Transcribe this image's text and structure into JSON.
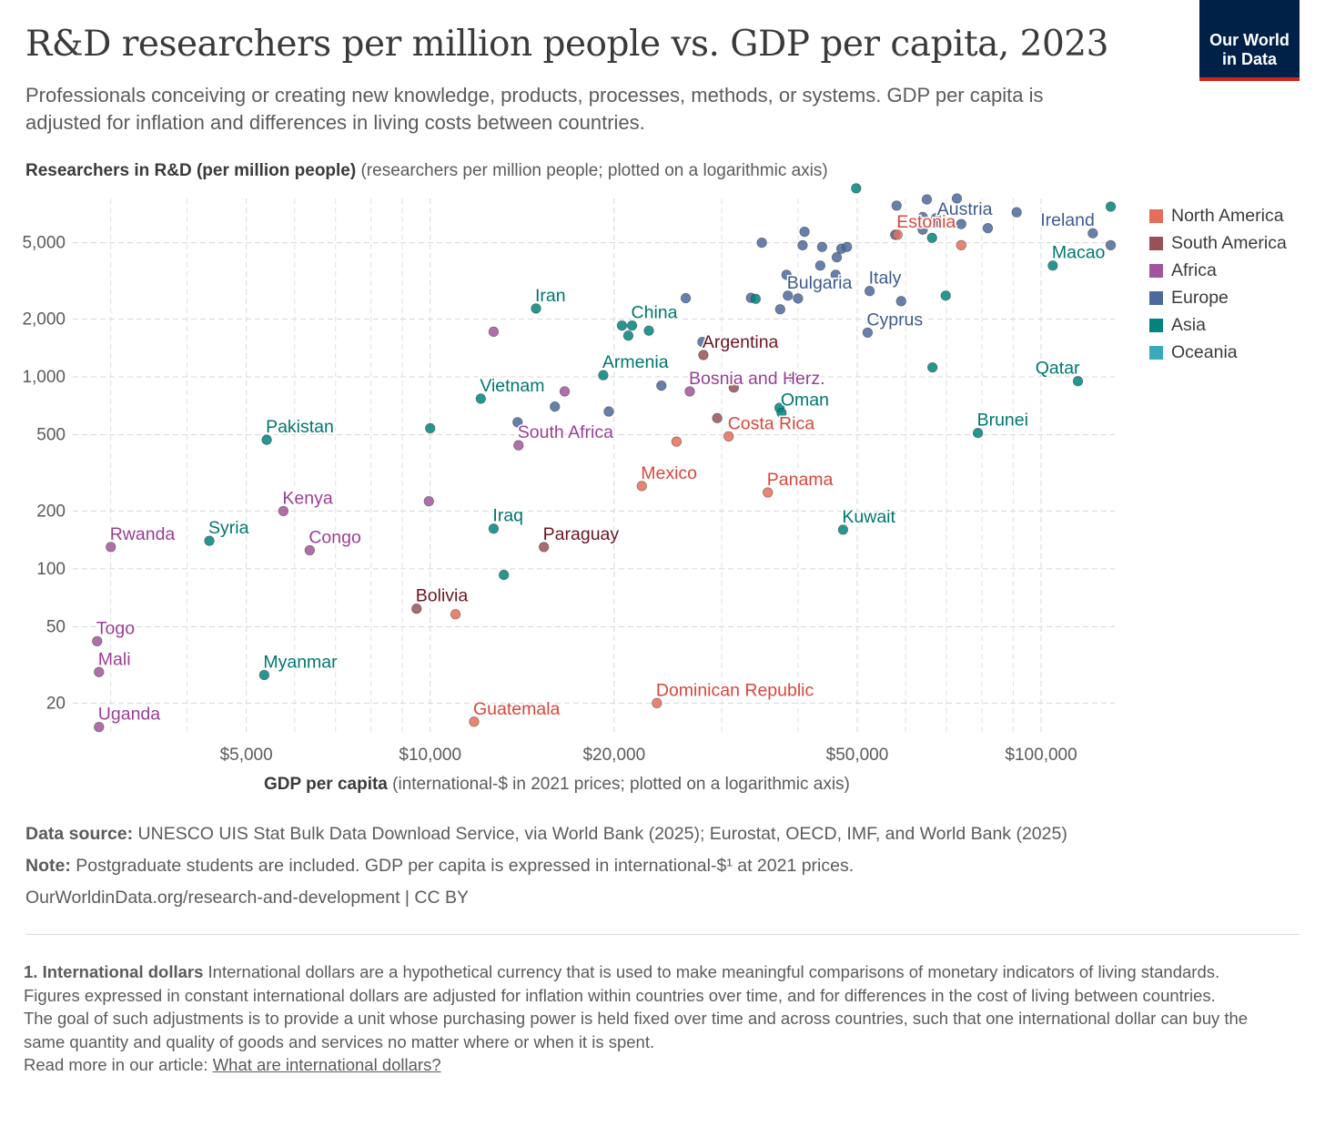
{
  "header": {
    "title": "R&D researchers per million people vs. GDP per capita, 2023",
    "subtitle": "Professionals conceiving or creating new knowledge, products, processes, methods, or systems. GDP per capita is adjusted for inflation and differences in living costs between countries.",
    "logo_line1": "Our World",
    "logo_line2": "in Data"
  },
  "colors": {
    "North America": "#e56e5a",
    "South America": "#9a5057",
    "Africa": "#a2559c",
    "Europe": "#4c6a9c",
    "Asia": "#00847e",
    "Oceania": "#38aaba",
    "label_North America": "#d7473b",
    "label_South America": "#6d1520",
    "label_Africa": "#9a3e94",
    "label_Europe": "#3d5a8e",
    "label_Asia": "#00766f",
    "logo_bg": "#002147",
    "logo_accent": "#ce261e"
  },
  "chart_data": {
    "type": "scatter",
    "title": "R&D researchers per million people vs. GDP per capita, 2023",
    "ylabel_bold": "Researchers in R&D (per million people)",
    "ylabel_rest": "(researchers per million people; plotted on a logarithmic axis)",
    "xlabel_bold": "GDP per capita",
    "xlabel_rest": "(international-$ in 2021 prices; plotted on a logarithmic axis)",
    "x_scale": "log",
    "y_scale": "log",
    "xlim": [
      2600,
      132000
    ],
    "ylim": [
      14,
      8500
    ],
    "x_ticks": [
      {
        "v": 5000,
        "label": "$5,000"
      },
      {
        "v": 10000,
        "label": "$10,000"
      },
      {
        "v": 20000,
        "label": "$20,000"
      },
      {
        "v": 50000,
        "label": "$50,000"
      },
      {
        "v": 100000,
        "label": "$100,000"
      }
    ],
    "x_minor_grid": [
      3000,
      4000,
      6000,
      7000,
      8000,
      9000,
      30000,
      40000,
      60000,
      70000,
      80000,
      90000
    ],
    "y_ticks": [
      {
        "v": 20,
        "label": "20"
      },
      {
        "v": 50,
        "label": "50"
      },
      {
        "v": 100,
        "label": "100"
      },
      {
        "v": 200,
        "label": "200"
      },
      {
        "v": 500,
        "label": "500"
      },
      {
        "v": 1000,
        "label": "1,000"
      },
      {
        "v": 2000,
        "label": "2,000"
      },
      {
        "v": 5000,
        "label": "5,000"
      }
    ],
    "grid": true,
    "legend_position": "right",
    "legend": [
      "North America",
      "South America",
      "Africa",
      "Europe",
      "Asia",
      "Oceania"
    ],
    "points": [
      {
        "x": 3000,
        "y": 130,
        "region": "Africa",
        "label": "Rwanda"
      },
      {
        "x": 2850,
        "y": 42,
        "region": "Africa",
        "label": "Togo"
      },
      {
        "x": 2870,
        "y": 29,
        "region": "Africa",
        "label": "Mali"
      },
      {
        "x": 2870,
        "y": 15,
        "region": "Africa",
        "label": "Uganda"
      },
      {
        "x": 4350,
        "y": 140,
        "region": "Asia",
        "label": "Syria"
      },
      {
        "x": 5400,
        "y": 470,
        "region": "Asia",
        "label": "Pakistan"
      },
      {
        "x": 5350,
        "y": 28,
        "region": "Asia",
        "label": "Myanmar"
      },
      {
        "x": 5750,
        "y": 200,
        "region": "Africa",
        "label": "Kenya"
      },
      {
        "x": 6350,
        "y": 125,
        "region": "Africa",
        "label": "Congo"
      },
      {
        "x": 9500,
        "y": 62,
        "region": "South America",
        "label": "Bolivia"
      },
      {
        "x": 9950,
        "y": 225,
        "region": "Africa"
      },
      {
        "x": 10000,
        "y": 540,
        "region": "Asia"
      },
      {
        "x": 11000,
        "y": 58,
        "region": "North America"
      },
      {
        "x": 11800,
        "y": 16,
        "region": "North America",
        "label": "Guatemala"
      },
      {
        "x": 12100,
        "y": 770,
        "region": "Asia",
        "label": "Vietnam"
      },
      {
        "x": 12700,
        "y": 1720,
        "region": "Africa"
      },
      {
        "x": 12700,
        "y": 162,
        "region": "Asia",
        "label": "Iraq"
      },
      {
        "x": 13200,
        "y": 93,
        "region": "Asia"
      },
      {
        "x": 13900,
        "y": 580,
        "region": "Europe"
      },
      {
        "x": 13950,
        "y": 440,
        "region": "Africa",
        "label": "South Africa"
      },
      {
        "x": 14900,
        "y": 2270,
        "region": "Asia",
        "label": "Iran"
      },
      {
        "x": 15350,
        "y": 130,
        "region": "South America",
        "label": "Paraguay"
      },
      {
        "x": 16000,
        "y": 700,
        "region": "Europe"
      },
      {
        "x": 16600,
        "y": 840,
        "region": "Africa"
      },
      {
        "x": 19200,
        "y": 1020,
        "region": "Asia",
        "label": "Armenia"
      },
      {
        "x": 19600,
        "y": 660,
        "region": "Europe"
      },
      {
        "x": 20600,
        "y": 1850,
        "region": "Asia"
      },
      {
        "x": 21100,
        "y": 1640,
        "region": "Asia"
      },
      {
        "x": 21400,
        "y": 1850,
        "region": "Asia",
        "label": "China"
      },
      {
        "x": 22200,
        "y": 270,
        "region": "North America",
        "label": "Mexico"
      },
      {
        "x": 22800,
        "y": 1740,
        "region": "Asia"
      },
      {
        "x": 23500,
        "y": 20,
        "region": "North America",
        "label": "Dominican Republic"
      },
      {
        "x": 23900,
        "y": 900,
        "region": "Europe"
      },
      {
        "x": 25300,
        "y": 460,
        "region": "North America"
      },
      {
        "x": 26200,
        "y": 2570,
        "region": "Europe"
      },
      {
        "x": 26600,
        "y": 840,
        "region": "Africa",
        "label": "Bosnia and Herz."
      },
      {
        "x": 27900,
        "y": 1520,
        "region": "Europe"
      },
      {
        "x": 28000,
        "y": 1300,
        "region": "South America",
        "label": "Argentina"
      },
      {
        "x": 29500,
        "y": 610,
        "region": "South America"
      },
      {
        "x": 30800,
        "y": 490,
        "region": "North America",
        "label": "Costa Rica"
      },
      {
        "x": 31400,
        "y": 880,
        "region": "South America"
      },
      {
        "x": 33500,
        "y": 2580,
        "region": "Europe"
      },
      {
        "x": 34100,
        "y": 2550,
        "region": "Asia"
      },
      {
        "x": 34900,
        "y": 5000,
        "region": "Europe"
      },
      {
        "x": 35700,
        "y": 250,
        "region": "North America",
        "label": "Panama"
      },
      {
        "x": 37300,
        "y": 690,
        "region": "Asia"
      },
      {
        "x": 37400,
        "y": 2250,
        "region": "Europe"
      },
      {
        "x": 37600,
        "y": 650,
        "region": "Asia",
        "label": "Oman"
      },
      {
        "x": 38300,
        "y": 3400,
        "region": "Europe"
      },
      {
        "x": 38500,
        "y": 2650,
        "region": "Europe",
        "label": "Bulgaria"
      },
      {
        "x": 39300,
        "y": 990,
        "region": "Europe"
      },
      {
        "x": 40000,
        "y": 2560,
        "region": "Europe"
      },
      {
        "x": 40700,
        "y": 4850,
        "region": "Europe"
      },
      {
        "x": 41000,
        "y": 5700,
        "region": "Europe"
      },
      {
        "x": 43500,
        "y": 3800,
        "region": "Europe"
      },
      {
        "x": 43800,
        "y": 4750,
        "region": "Europe"
      },
      {
        "x": 46100,
        "y": 3400,
        "region": "Europe"
      },
      {
        "x": 46300,
        "y": 4200,
        "region": "Europe"
      },
      {
        "x": 47100,
        "y": 4650,
        "region": "Europe"
      },
      {
        "x": 48100,
        "y": 4750,
        "region": "Europe"
      },
      {
        "x": 47400,
        "y": 160,
        "region": "Asia",
        "label": "Kuwait"
      },
      {
        "x": 49800,
        "y": 9600,
        "region": "Asia"
      },
      {
        "x": 52000,
        "y": 1700,
        "region": "Europe",
        "label": "Cyprus"
      },
      {
        "x": 52400,
        "y": 2800,
        "region": "Europe",
        "label": "Italy"
      },
      {
        "x": 57700,
        "y": 5500,
        "region": "Europe"
      },
      {
        "x": 58000,
        "y": 7800,
        "region": "Europe"
      },
      {
        "x": 58200,
        "y": 5500,
        "region": "North America",
        "label": "Estonia"
      },
      {
        "x": 59000,
        "y": 2480,
        "region": "Europe"
      },
      {
        "x": 64000,
        "y": 6800,
        "region": "Europe"
      },
      {
        "x": 64000,
        "y": 5850,
        "region": "Europe"
      },
      {
        "x": 65000,
        "y": 8400,
        "region": "Europe"
      },
      {
        "x": 66300,
        "y": 5300,
        "region": "Asia"
      },
      {
        "x": 66400,
        "y": 1120,
        "region": "Asia"
      },
      {
        "x": 67300,
        "y": 6700,
        "region": "Europe"
      },
      {
        "x": 67800,
        "y": 6400,
        "region": "Europe",
        "label": "Austria"
      },
      {
        "x": 69800,
        "y": 2650,
        "region": "Asia"
      },
      {
        "x": 72800,
        "y": 8500,
        "region": "Europe"
      },
      {
        "x": 74000,
        "y": 6250,
        "region": "Europe"
      },
      {
        "x": 74000,
        "y": 4850,
        "region": "North America"
      },
      {
        "x": 78800,
        "y": 510,
        "region": "Asia",
        "label": "Brunei"
      },
      {
        "x": 81800,
        "y": 5950,
        "region": "Europe"
      },
      {
        "x": 91200,
        "y": 7200,
        "region": "Europe"
      },
      {
        "x": 104500,
        "y": 3800,
        "region": "Asia",
        "label": "Macao"
      },
      {
        "x": 114900,
        "y": 950,
        "region": "Asia",
        "label": "Qatar"
      },
      {
        "x": 121500,
        "y": 5600,
        "region": "Europe",
        "label": "Ireland"
      },
      {
        "x": 130000,
        "y": 7700,
        "region": "Asia"
      },
      {
        "x": 130000,
        "y": 4850,
        "region": "Europe"
      }
    ]
  },
  "footer": {
    "source_bold": "Data source:",
    "source_text": "UNESCO UIS Stat Bulk Data Download Service, via World Bank (2025); Eurostat, OECD, IMF, and World Bank (2025)",
    "note_bold": "Note:",
    "note_text": "Postgraduate students are included. GDP per capita is expressed in international-$¹ at 2021 prices.",
    "url": "OurWorldinData.org/research-and-development | CC BY"
  },
  "footnote": {
    "title": "1. International dollars",
    "text1": "International dollars are a hypothetical currency that is used to make meaningful comparisons of monetary indicators of living standards.",
    "text2": "Figures expressed in constant international dollars are adjusted for inflation within countries over time, and for differences in the cost of living between countries.",
    "text3": "The goal of such adjustments is to provide a unit whose purchasing power is held fixed over time and across countries, such that one international dollar can buy the same quantity and quality of goods and services no matter where or when it is spent.",
    "read_more": "Read more in our article:",
    "link": "What are international dollars?"
  }
}
